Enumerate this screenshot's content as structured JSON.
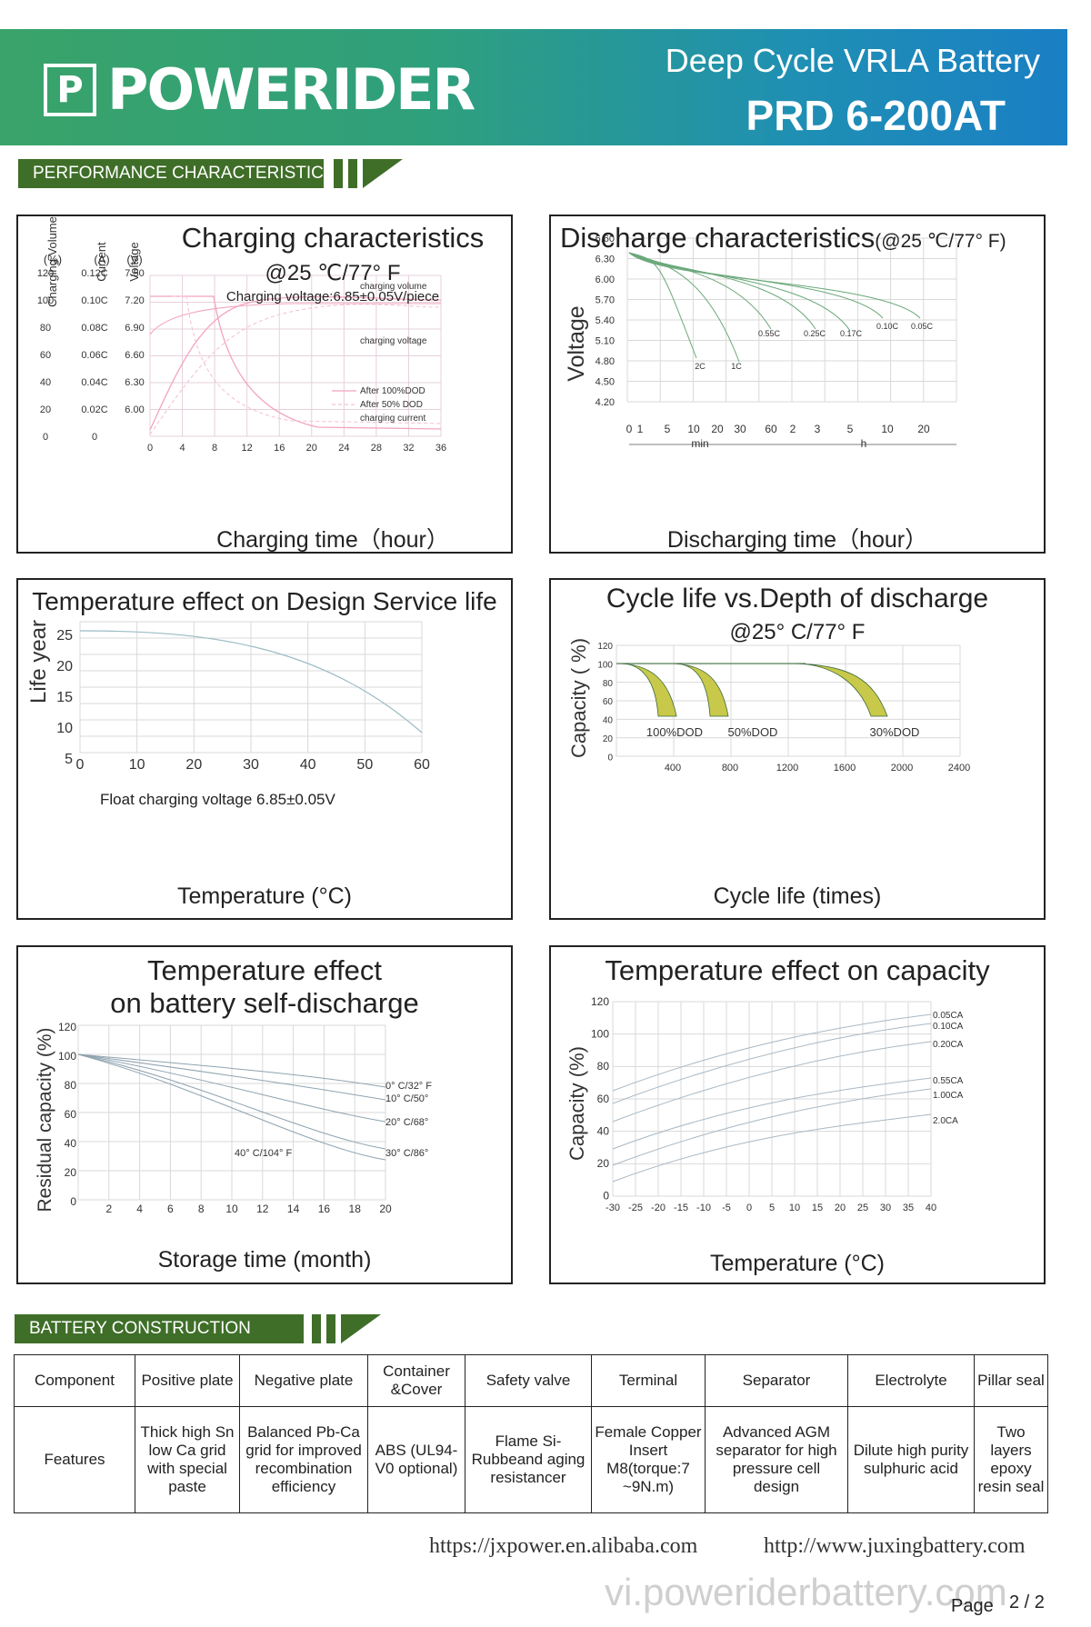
{
  "header": {
    "brand": "POWERIDER",
    "logo_letter": "P",
    "title": "Deep Cycle VRLA Battery",
    "model": "PRD 6-200AT"
  },
  "sections": {
    "performance": "PERFORMANCE    CHARACTERISTIC",
    "construction": "BATTERY    CONSTRUCTION"
  },
  "colors": {
    "header_green": "#3aa36a",
    "header_blue": "#1a7fc4",
    "tab_green": "#3f6e28",
    "curve_yellow": "#d8d84a",
    "curve_green": "#3a6a3a"
  },
  "charts": {
    "charging": {
      "title": "Charging characteristics",
      "subtitle": "@25 ℃/77° F",
      "note": "Charging voltage:6.85±0.05V/piece",
      "y_heads": [
        "Charging Volume",
        "Current",
        "Voltage"
      ],
      "y_units": [
        "(%)",
        "(A)",
        "(V)"
      ],
      "volume_ticks": [
        "120",
        "100",
        "80",
        "60",
        "40",
        "20",
        "0"
      ],
      "current_ticks": [
        "0.12C",
        "0.10C",
        "0.08C",
        "0.06C",
        "0.04C",
        "0.02C",
        "0"
      ],
      "voltage_ticks": [
        "7.50",
        "7.20",
        "6.90",
        "6.60",
        "6.30",
        "6.00"
      ],
      "x_ticks": [
        "0",
        "4",
        "8",
        "12",
        "16",
        "20",
        "24",
        "28",
        "32",
        "36"
      ],
      "labels": [
        "charging volume",
        "charging voltage",
        "charging current"
      ],
      "legend": [
        "After 100%DOD",
        "After  50% DOD"
      ],
      "xlabel": "Charging time（hour）"
    },
    "discharge": {
      "title": "Discharge characteristics",
      "subtitle": "(@25 ℃/77° F)",
      "ylabel": "Voltage",
      "y_ticks": [
        "6.60",
        "6.30",
        "6.00",
        "5.70",
        "5.40",
        "5.10",
        "4.80",
        "4.50",
        "4.20"
      ],
      "x_ticks": [
        "0",
        "1",
        "5",
        "10",
        "20",
        "30",
        "60",
        "2",
        "3",
        "5",
        "10",
        "20"
      ],
      "x_units": [
        "min",
        "h"
      ],
      "rate_labels": [
        "2C",
        "1C",
        "0.55C",
        "0.25C",
        "0.17C",
        "0.10C",
        "0.05C"
      ],
      "xlabel": "Discharging time（hour）"
    },
    "service_life": {
      "title": "Temperature effect on Design Service life",
      "ylabel": "Life year",
      "y_ticks": [
        "25",
        "20",
        "15",
        "10",
        "5"
      ],
      "x_ticks": [
        "0",
        "10",
        "20",
        "30",
        "40",
        "50",
        "60"
      ],
      "annotation": "Float charging voltage  6.85±0.05V",
      "xlabel": "Temperature (°C)"
    },
    "cycle_life": {
      "title": "Cycle life vs.Depth of discharge",
      "subtitle": "@25° C/77° F",
      "ylabel": "Capacity ( %)",
      "y_ticks": [
        "120",
        "100",
        "80",
        "60",
        "40",
        "20",
        "0"
      ],
      "x_ticks": [
        "400",
        "800",
        "1200",
        "1600",
        "2000",
        "2400"
      ],
      "band_labels": [
        "100%DOD",
        "50%DOD",
        "30%DOD"
      ],
      "xlabel": "Cycle life  (times)"
    },
    "self_discharge": {
      "title_line1": "Temperature effect",
      "title_line2": "on battery self-discharge",
      "ylabel": "Residual capacity  (%)",
      "y_ticks": [
        "120",
        "100",
        "80",
        "60",
        "40",
        "20",
        "0"
      ],
      "x_ticks": [
        "2",
        "4",
        "6",
        "8",
        "10",
        "12",
        "14",
        "16",
        "18",
        "20"
      ],
      "curve_labels": [
        "0° C/32° F",
        "10° C/50°",
        "20° C/68°",
        "30° C/86°",
        "40° C/104° F"
      ],
      "xlabel": "Storage time (month)"
    },
    "temp_capacity": {
      "title": "Temperature effect on capacity",
      "ylabel": "Capacity  (%)",
      "y_ticks": [
        "120",
        "100",
        "80",
        "60",
        "40",
        "20",
        "0"
      ],
      "x_ticks": [
        "-30",
        "-25",
        "-20",
        "-15",
        "-10",
        "-5",
        "0",
        "5",
        "10",
        "15",
        "20",
        "25",
        "30",
        "35",
        "40"
      ],
      "rate_labels": [
        "0.05CA",
        "0.10CA",
        "0.20CA",
        "0.55CA",
        "1.00CA",
        "2.0CA"
      ],
      "xlabel": "Temperature (°C)"
    }
  },
  "construction": {
    "headers": [
      "Component",
      "Positive plate",
      "Negative plate",
      "Container &Cover",
      "Safety valve",
      "Terminal",
      "Separator",
      "Electrolyte",
      "Pillar seal"
    ],
    "features": [
      "Features",
      "Thick high Sn low Ca grid with special paste",
      "Balanced Pb-Ca grid for improved recombination efficiency",
      "ABS (UL94-V0 optional)",
      "Flame Si-Rubbeand aging resistancer",
      "Female Copper Insert M8(torque:7 ~9N.m)",
      "Advanced AGM separator for high pressure cell design",
      "Dilute high purity sulphuric acid",
      "Two layers epoxy resin seal"
    ]
  },
  "footer": {
    "url1": "https://jxpower.en.alibaba.com",
    "url2": "http://www.juxingbattery.com",
    "watermark": "vi.poweriderbattery.com",
    "page_label": "Page",
    "page_num": "2 / 2"
  }
}
